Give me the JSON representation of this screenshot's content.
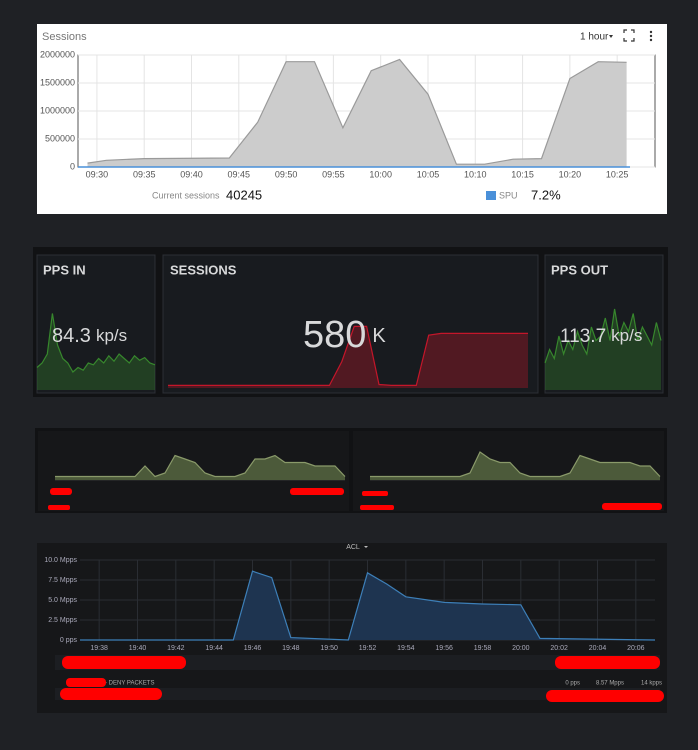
{
  "chart_data": [
    {
      "type": "area",
      "title": "Sessions",
      "time_range": "1 hour",
      "color": "#cccccc",
      "stroke": "#9a9a9a",
      "x": [
        "09:29",
        "09:31",
        "09:35",
        "09:44",
        "09:47",
        "09:50",
        "09:53",
        "09:56",
        "09:59",
        "10:02",
        "10:05",
        "10:08",
        "10:11",
        "10:14",
        "10:17",
        "10:20",
        "10:23",
        "10:26"
      ],
      "values": [
        70000,
        120000,
        150000,
        160000,
        800000,
        1880000,
        1880000,
        700000,
        1720000,
        1920000,
        1300000,
        50000,
        50000,
        140000,
        150000,
        1580000,
        1880000,
        1870000
      ],
      "xlim": [
        "09:28",
        "10:29"
      ],
      "xticks": [
        "09:30",
        "09:35",
        "09:40",
        "09:45",
        "09:50",
        "09:55",
        "10:00",
        "10:05",
        "10:10",
        "10:15",
        "10:20",
        "10:25"
      ],
      "ylim": [
        0,
        2000000
      ],
      "yticks": [
        0,
        500000,
        1000000,
        1500000,
        2000000
      ],
      "grid": true,
      "footer": {
        "current_label": "Current sessions",
        "current_value": 40245,
        "spu_label": "SPU",
        "spu_value": "7.2%"
      }
    },
    {
      "type": "stat",
      "title": "PPS IN",
      "value": 84.3,
      "unit": "kp/s",
      "color": "#37872d",
      "ylim": [
        0,
        100
      ],
      "values": [
        25,
        30,
        40,
        85,
        50,
        35,
        30,
        20,
        25,
        22,
        30,
        28,
        35,
        30,
        38,
        32,
        40,
        35,
        30,
        38,
        33,
        36,
        30,
        28
      ]
    },
    {
      "type": "stat",
      "title": "SESSIONS",
      "value": 580,
      "unit": "K",
      "color": "#c4162a",
      "ylim": [
        0,
        100
      ],
      "values": [
        3,
        3,
        3,
        3,
        3,
        3,
        3,
        3,
        3,
        3,
        3,
        3,
        3,
        3,
        30,
        70,
        70,
        4,
        3,
        3,
        3,
        60,
        62,
        62,
        62,
        62,
        62,
        62,
        62,
        62
      ]
    },
    {
      "type": "stat",
      "title": "PPS OUT",
      "value": 113.7,
      "unit": "kp/s",
      "color": "#37872d",
      "ylim": [
        0,
        100
      ],
      "values": [
        30,
        45,
        35,
        60,
        40,
        55,
        45,
        65,
        50,
        40,
        70,
        55,
        60,
        80,
        55,
        90,
        60,
        75,
        65,
        85,
        55,
        70,
        60,
        50,
        75,
        55
      ]
    },
    {
      "type": "area",
      "color": "#4c5a3a",
      "stroke": "#8a9a6a",
      "ylim": [
        0,
        10
      ],
      "values": [
        1,
        1,
        1,
        1,
        1,
        1,
        1,
        1,
        1,
        4,
        1,
        2,
        7,
        6,
        5,
        2,
        1,
        1,
        1,
        2,
        6,
        6,
        7,
        5,
        5,
        5,
        4,
        4,
        4,
        1
      ]
    },
    {
      "type": "area",
      "color": "#4c5a3a",
      "stroke": "#8a9a6a",
      "ylim": [
        0,
        10
      ],
      "values": [
        1,
        1,
        1,
        1,
        1,
        1,
        1,
        1,
        1,
        1,
        2,
        8,
        6,
        5,
        5,
        2,
        1,
        1,
        1,
        1,
        2,
        7,
        6,
        5,
        5,
        5,
        5,
        4,
        4,
        1
      ]
    },
    {
      "type": "area",
      "title": "ACL",
      "color": "#1e3450",
      "stroke": "#3d7fb8",
      "x": [
        "19:37",
        "19:45",
        "19:46",
        "19:47",
        "19:48",
        "19:51",
        "19:52",
        "19:53",
        "19:54",
        "19:56",
        "19:58",
        "20:00",
        "20:01",
        "20:07"
      ],
      "values": [
        0,
        0,
        8.6,
        7.8,
        0.3,
        0,
        8.4,
        7.0,
        5.4,
        4.7,
        4.5,
        4.4,
        0.2,
        0
      ],
      "xlim": [
        "19:37",
        "20:07"
      ],
      "xticks": [
        "19:38",
        "19:40",
        "19:42",
        "19:44",
        "19:46",
        "19:48",
        "19:50",
        "19:52",
        "19:54",
        "19:56",
        "19:58",
        "20:00",
        "20:02",
        "20:04",
        "20:06"
      ],
      "ylim": [
        0,
        10
      ],
      "yticks": [
        {
          "value": 0,
          "label": "0 pps"
        },
        {
          "value": 2.5,
          "label": "2.5 Mpps"
        },
        {
          "value": 5,
          "label": "5.0 Mpps"
        },
        {
          "value": 7.5,
          "label": "7.5 Mpps"
        },
        {
          "value": 10,
          "label": "10.0 Mpps"
        }
      ],
      "grid": true,
      "legend": {
        "name": "- DENY PACKETS",
        "min": "0 pps",
        "max": "8.57 Mpps",
        "current": "14 kpps"
      }
    }
  ]
}
